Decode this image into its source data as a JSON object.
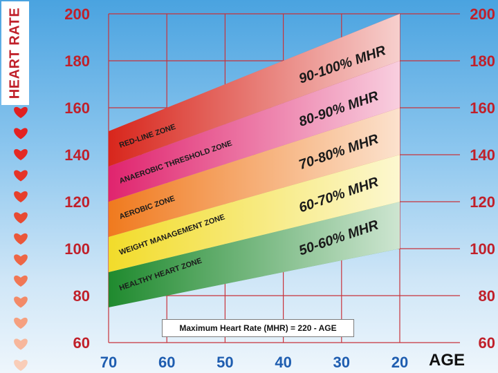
{
  "chart_data": {
    "type": "area",
    "ylabel": "HEART RATE",
    "xlabel": "AGE",
    "x_ticks": [
      70,
      60,
      50,
      40,
      30,
      20
    ],
    "y_ticks": [
      60,
      80,
      100,
      120,
      140,
      160,
      180,
      200
    ],
    "xlim": [
      70,
      20
    ],
    "ylim": [
      60,
      200
    ],
    "grid": true,
    "formula": "Maximum Heart Rate (MHR) = 220 - AGE",
    "bands": [
      {
        "zone": "HEALTHY HEART ZONE",
        "pct_label": "50-60% MHR",
        "color": "#1f8a2e",
        "lower_pct": 0.5,
        "upper_pct": 0.6
      },
      {
        "zone": "WEIGHT MANAGEMENT ZONE",
        "pct_label": "60-70% MHR",
        "color": "#f2dc2a",
        "lower_pct": 0.6,
        "upper_pct": 0.7
      },
      {
        "zone": "AEROBIC ZONE",
        "pct_label": "70-80% MHR",
        "color": "#f07a1e",
        "lower_pct": 0.7,
        "upper_pct": 0.8
      },
      {
        "zone": "ANAEROBIC THRESHOLD ZONE",
        "pct_label": "80-90% MHR",
        "color": "#e0246e",
        "lower_pct": 0.8,
        "upper_pct": 0.9
      },
      {
        "zone": "RED-LINE ZONE",
        "pct_label": "90-100% MHR",
        "color": "#d8261c",
        "lower_pct": 0.9,
        "upper_pct": 1.0
      }
    ],
    "heart_colors": [
      "#e01f1f",
      "#e32222",
      "#e42a24",
      "#e53428",
      "#e63f2c",
      "#e84a32",
      "#ea573a",
      "#ed6646",
      "#f07755",
      "#f28a68",
      "#f5a080",
      "#f7b79c",
      "#f9cdb8"
    ]
  }
}
